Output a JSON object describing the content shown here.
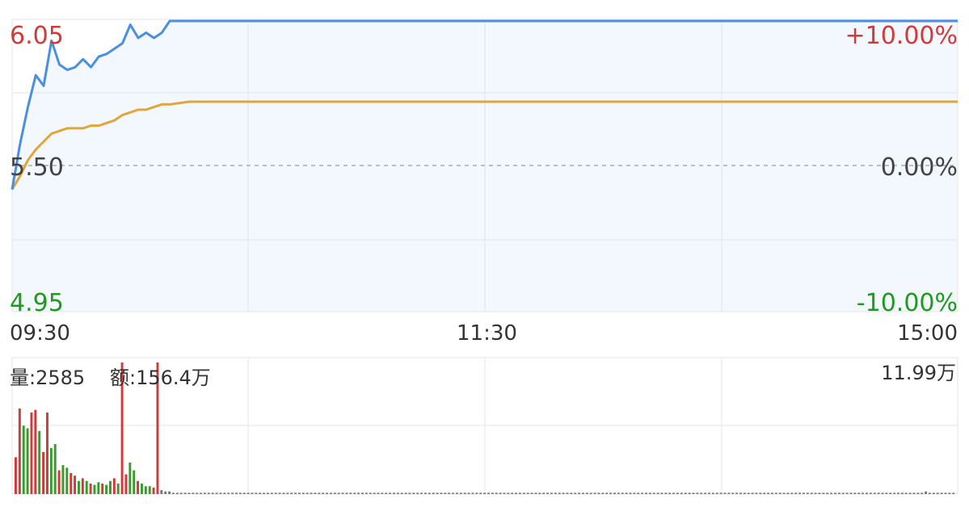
{
  "price_panel": {
    "y_left_labels": {
      "top": "6.05",
      "mid": "5.50",
      "bottom": "4.95"
    },
    "y_right_labels": {
      "top": "+10.00%",
      "mid": "0.00%",
      "bottom": "-10.00%"
    },
    "x_labels": {
      "start": "09:30",
      "mid": "11:30",
      "end": "15:00"
    }
  },
  "volume_panel": {
    "volume_label": "量:2585",
    "amount_label": "额:156.4万",
    "max_label": "11.99万"
  },
  "colors": {
    "price_line": "#4a8fe0",
    "avg_line": "#e0a63a",
    "up": "#d03a3a",
    "down": "#3a9a2a",
    "flat": "#777777",
    "fill": "#f3f8fe",
    "grid": "#e6e6e6",
    "label_red": "#d03a3a",
    "label_green": "#1f9a1f",
    "label_gray": "#444444"
  },
  "chart_data": [
    {
      "type": "line",
      "name": "intraday-price",
      "x": [
        "09:30",
        "09:32",
        "09:34",
        "09:36",
        "09:38",
        "09:40",
        "09:42",
        "09:44",
        "09:46",
        "09:48",
        "09:50",
        "09:52",
        "09:54",
        "09:56",
        "09:58",
        "10:00",
        "10:02",
        "10:04",
        "10:06",
        "10:08",
        "10:10",
        "10:15",
        "11:00",
        "11:30",
        "13:00",
        "14:00",
        "15:00"
      ],
      "series": [
        {
          "values": [
            5.41,
            5.58,
            5.72,
            5.84,
            5.8,
            5.97,
            5.88,
            5.86,
            5.87,
            5.9,
            5.87,
            5.91,
            5.92,
            5.94,
            5.96,
            6.03,
            5.98,
            6.0,
            5.98,
            6.0,
            6.05,
            6.05,
            6.05,
            6.05,
            6.05,
            6.05,
            6.05
          ]
        },
        {
          "values": [
            5.41,
            5.46,
            5.52,
            5.56,
            5.59,
            5.62,
            5.63,
            5.64,
            5.64,
            5.64,
            5.65,
            5.65,
            5.66,
            5.67,
            5.69,
            5.7,
            5.71,
            5.71,
            5.72,
            5.73,
            5.73,
            5.74,
            5.74,
            5.74,
            5.74,
            5.74,
            5.74
          ]
        }
      ],
      "ylim": [
        4.95,
        6.05
      ]
    },
    {
      "type": "bar",
      "name": "intraday-volume",
      "categories_span": [
        "09:30",
        "15:00"
      ],
      "values": [
        28,
        65,
        52,
        50,
        62,
        64,
        48,
        32,
        62,
        35,
        38,
        18,
        22,
        20,
        16,
        14,
        10,
        12,
        10,
        8,
        7,
        9,
        8,
        7,
        10,
        12,
        8,
        100,
        15,
        24,
        18,
        10,
        8,
        6,
        6,
        5,
        100,
        3,
        2,
        2,
        1,
        1,
        1,
        1,
        1,
        1,
        1,
        1,
        1,
        1,
        1,
        1,
        1,
        1,
        1,
        1,
        1,
        1,
        1,
        1,
        1,
        1,
        1,
        1,
        1,
        1,
        1,
        1,
        1,
        1,
        1,
        1,
        1,
        1,
        1,
        1,
        1,
        1,
        1,
        1,
        1,
        1,
        1,
        1,
        1,
        1,
        1,
        1,
        1,
        1,
        1,
        1,
        1,
        1,
        1,
        1,
        1,
        1,
        1,
        1,
        1,
        1,
        1,
        1,
        1,
        1,
        1,
        1,
        1,
        1,
        1,
        1,
        1,
        1,
        1,
        1,
        1,
        1,
        1,
        1,
        1,
        1,
        1,
        1,
        1,
        1,
        1,
        1,
        1,
        1,
        1,
        1,
        1,
        1,
        1,
        1,
        1,
        1,
        1,
        1,
        1,
        1,
        1,
        1,
        1,
        1,
        1,
        1,
        1,
        1,
        1,
        1,
        1,
        1,
        1,
        1,
        1,
        1,
        1,
        1,
        1,
        1,
        1,
        1,
        1,
        1,
        1,
        1,
        1,
        1,
        1,
        1,
        1,
        1,
        1,
        1,
        1,
        1,
        1,
        1,
        1,
        1,
        1,
        1,
        1,
        1,
        1,
        1,
        1,
        1,
        1,
        1,
        1,
        1,
        1,
        1,
        1,
        1,
        1,
        1,
        1,
        1,
        1,
        1,
        1,
        1,
        1,
        1,
        1,
        1,
        1,
        1,
        1,
        1,
        1,
        1,
        1,
        1,
        1,
        1,
        1,
        1,
        1,
        1,
        1,
        1,
        1,
        1,
        1,
        1,
        1,
        2,
        1,
        1,
        1,
        1,
        1,
        1,
        1,
        1,
        1,
        1,
        1,
        2,
        3,
        2,
        1,
        2
      ],
      "directions": [
        "up",
        "up",
        "down",
        "down",
        "up",
        "up",
        "down",
        "up",
        "up",
        "down",
        "down",
        "up",
        "down",
        "down",
        "up",
        "up",
        "down",
        "up",
        "down",
        "up",
        "down",
        "down",
        "up",
        "down",
        "down",
        "up",
        "down",
        "up",
        "up",
        "down",
        "down",
        "up",
        "down",
        "down",
        "down",
        "up",
        "up"
      ],
      "ylim_max_label": "11.99万"
    }
  ]
}
